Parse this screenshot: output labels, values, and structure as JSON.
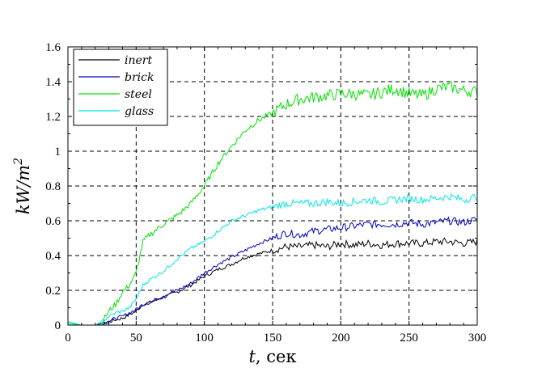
{
  "chart_data": {
    "type": "line",
    "title": "",
    "xlabel": "t, сек",
    "ylabel": "kW/m^2",
    "xlim": [
      0,
      300
    ],
    "ylim": [
      0,
      1.6
    ],
    "grid": true,
    "legend_position": "upper-left",
    "x_ticks": [
      "0",
      "50",
      "100",
      "150",
      "200",
      "250",
      "300"
    ],
    "y_ticks": [
      "0",
      "0.2",
      "0.4",
      "0.6",
      "0.8",
      "1",
      "1.2",
      "1.4",
      "1.6"
    ],
    "x": [
      0,
      10,
      20,
      25,
      30,
      35,
      40,
      45,
      50,
      55,
      60,
      70,
      80,
      90,
      100,
      110,
      120,
      130,
      140,
      150,
      160,
      170,
      180,
      190,
      200,
      210,
      220,
      230,
      240,
      250,
      260,
      270,
      280,
      290,
      300
    ],
    "series": [
      {
        "name": "inert",
        "color": "#000000",
        "values": [
          0.0,
          0.0,
          0.0,
          0.01,
          0.02,
          0.03,
          0.04,
          0.06,
          0.08,
          0.12,
          0.13,
          0.16,
          0.19,
          0.23,
          0.28,
          0.32,
          0.35,
          0.39,
          0.41,
          0.43,
          0.45,
          0.45,
          0.46,
          0.45,
          0.47,
          0.46,
          0.47,
          0.46,
          0.47,
          0.47,
          0.47,
          0.48,
          0.48,
          0.47,
          0.48
        ]
      },
      {
        "name": "brick",
        "color": "#0000c0",
        "values": [
          0.0,
          0.0,
          0.0,
          0.01,
          0.02,
          0.04,
          0.05,
          0.07,
          0.09,
          0.12,
          0.13,
          0.17,
          0.2,
          0.24,
          0.3,
          0.35,
          0.39,
          0.43,
          0.47,
          0.5,
          0.53,
          0.52,
          0.54,
          0.55,
          0.56,
          0.57,
          0.58,
          0.58,
          0.58,
          0.59,
          0.58,
          0.59,
          0.6,
          0.59,
          0.61
        ]
      },
      {
        "name": "steel",
        "color": "#00e000",
        "values": [
          0.01,
          0.0,
          0.0,
          0.02,
          0.08,
          0.12,
          0.19,
          0.23,
          0.3,
          0.48,
          0.52,
          0.58,
          0.63,
          0.7,
          0.8,
          0.93,
          1.03,
          1.12,
          1.18,
          1.22,
          1.27,
          1.3,
          1.31,
          1.32,
          1.33,
          1.33,
          1.32,
          1.34,
          1.36,
          1.33,
          1.32,
          1.36,
          1.37,
          1.35,
          1.34
        ]
      },
      {
        "name": "glass",
        "color": "#00e5e5",
        "values": [
          0.02,
          0.0,
          0.0,
          0.02,
          0.05,
          0.07,
          0.08,
          0.1,
          0.15,
          0.23,
          0.26,
          0.31,
          0.38,
          0.44,
          0.48,
          0.54,
          0.6,
          0.63,
          0.66,
          0.68,
          0.7,
          0.7,
          0.7,
          0.71,
          0.7,
          0.71,
          0.72,
          0.71,
          0.72,
          0.73,
          0.72,
          0.73,
          0.74,
          0.72,
          0.74
        ]
      }
    ]
  }
}
